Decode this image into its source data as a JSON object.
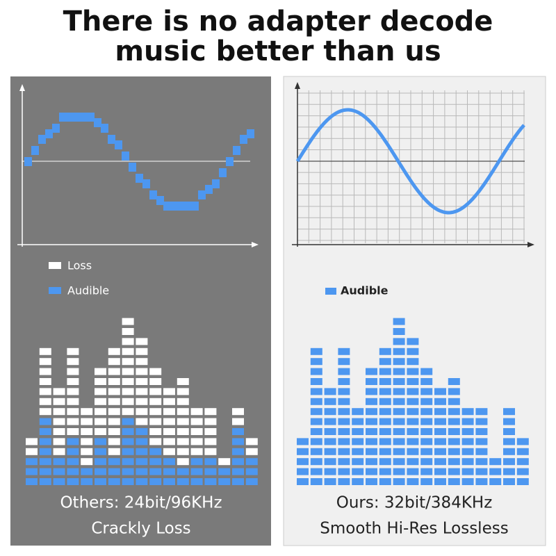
{
  "header": {
    "title_lines": [
      "There is no adapter decode",
      "music better than us"
    ]
  },
  "left_panel": {
    "legend": [
      "Loss",
      "Audible"
    ],
    "caption_lines": [
      "Others: 24bit/96KHz",
      "Crackly Loss"
    ]
  },
  "right_panel": {
    "legend": [
      "Audible"
    ],
    "caption_lines": [
      "Ours: 32bit/384KHz",
      "Smooth Hi-Res Lossless"
    ]
  }
}
